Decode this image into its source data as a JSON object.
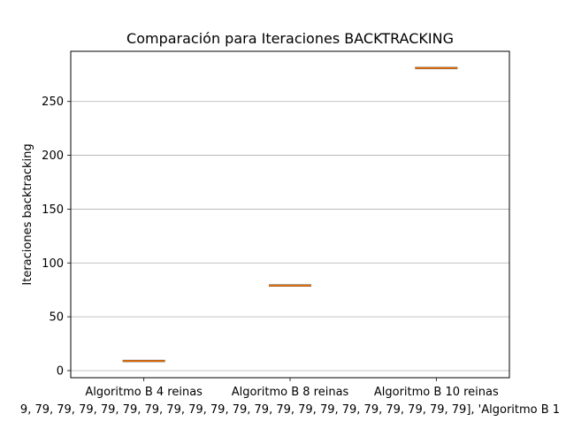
{
  "chart_data": {
    "type": "box",
    "title": "Comparación para Iteraciones BACKTRACKING",
    "xlabel": "9, 79, 79, 79, 79, 79, 79, 79, 79, 79, 79, 79, 79, 79, 79, 79, 79, 79, 79, 79, 79], 'Algoritmo B 1",
    "ylabel": "Iteraciones backtracking",
    "categories": [
      "Algoritmo B 4 reinas",
      "Algoritmo B 8 reinas",
      "Algoritmo B 10 reinas"
    ],
    "values": [
      9,
      79,
      281
    ],
    "ylim": [
      -6.6,
      296.6
    ],
    "yticks": [
      0,
      50,
      100,
      150,
      200,
      250
    ],
    "grid": "y",
    "colors": {
      "median": "#ff7f0e",
      "box": "#000000",
      "grid": "#b0b0b0"
    }
  }
}
